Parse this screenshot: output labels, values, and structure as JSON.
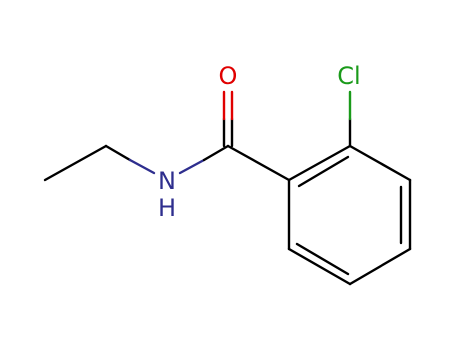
{
  "atoms": {
    "oxygen": "O",
    "chlorine": "Cl",
    "nitrogen": "N",
    "hydrogen": "H"
  }
}
